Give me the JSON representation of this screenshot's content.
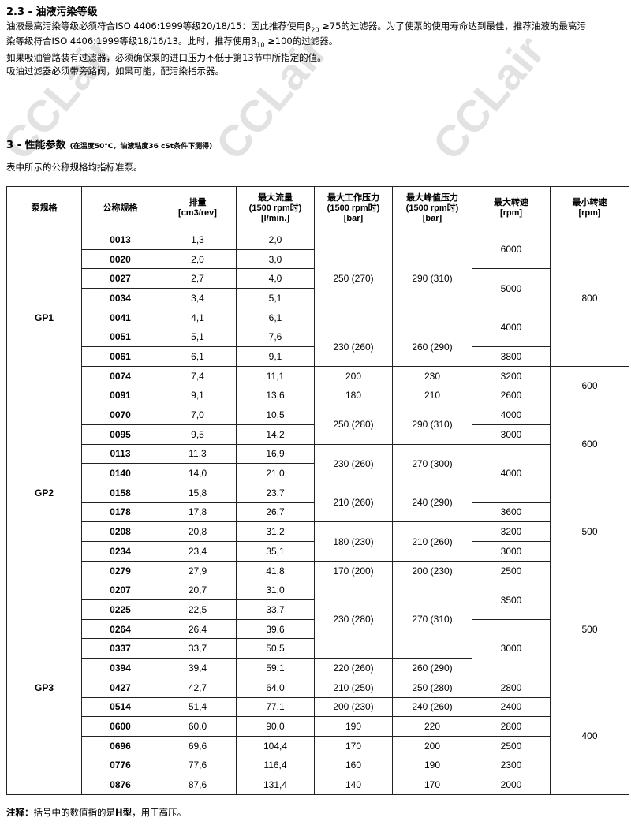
{
  "section_2_3": {
    "title": "2.3 - 油液污染等级",
    "line1_a": "油液最高污染等级必须符合ISO 4406:1999等级20/18/15：因此推荐使用β",
    "line1_sub": "20",
    "line1_b": " ≥75的过滤器。为了使泵的使用寿命达到最佳，推荐油液的最高污",
    "line2_a": "染等级符合ISO 4406:1999等级18/16/13。此时，推荐使用β",
    "line2_sub": "10",
    "line2_b": " ≥100的过滤器。",
    "line3": "如果吸油管路装有过滤器，必须确保泵的进口压力不低于第13节中所指定的值。",
    "line4": "吸油过滤器必须带旁路阀，如果可能，配污染指示器。"
  },
  "section_3": {
    "title": "3 - 性能参数",
    "condition": "(在温度50°C，油液粘度36 cSt条件下测得)",
    "intro": "表中所示的公称规格均指标准泵。"
  },
  "table": {
    "headers": [
      [
        "泵规格"
      ],
      [
        "公称规格"
      ],
      [
        "排量",
        "[cm3/rev]"
      ],
      [
        "最大流量",
        "(1500 rpm时)",
        "[l/min.]"
      ],
      [
        "最大工作压力",
        "(1500 rpm时)",
        "[bar]"
      ],
      [
        "最大峰值压力",
        "(1500 rpm时)",
        "[bar]"
      ],
      [
        "最大转速",
        "[rpm]"
      ],
      [
        "最小转速",
        "[rpm]"
      ]
    ],
    "groups": [
      {
        "name": "GP1",
        "nominal": [
          "0013",
          "0020",
          "0027",
          "0034",
          "0041",
          "0051",
          "0061",
          "0074",
          "0091"
        ],
        "displacement": [
          "1,3",
          "2,0",
          "2,7",
          "3,4",
          "4,1",
          "5,1",
          "6,1",
          "7,4",
          "9,1"
        ],
        "max_flow": [
          "2,0",
          "3,0",
          "4,0",
          "5,1",
          "6,1",
          "7,6",
          "9,1",
          "11,1",
          "13,6"
        ],
        "work_pressure": [
          {
            "v": "250 (270)",
            "span": 5
          },
          {
            "v": "230 (260)",
            "span": 2
          },
          {
            "v": "200",
            "span": 1
          },
          {
            "v": "180",
            "span": 1
          }
        ],
        "peak_pressure": [
          {
            "v": "290 (310)",
            "span": 5
          },
          {
            "v": "260 (290)",
            "span": 2
          },
          {
            "v": "230",
            "span": 1
          },
          {
            "v": "210",
            "span": 1
          }
        ],
        "max_speed": [
          {
            "v": "6000",
            "span": 2
          },
          {
            "v": "5000",
            "span": 2
          },
          {
            "v": "4000",
            "span": 2
          },
          {
            "v": "3800",
            "span": 1
          },
          {
            "v": "3200",
            "span": 1
          },
          {
            "v": "2600",
            "span": 1
          }
        ],
        "min_speed": [
          {
            "v": "800",
            "span": 7
          },
          {
            "v": "600",
            "span": 2
          }
        ]
      },
      {
        "name": "GP2",
        "nominal": [
          "0070",
          "0095",
          "0113",
          "0140",
          "0158",
          "0178",
          "0208",
          "0234",
          "0279"
        ],
        "displacement": [
          "7,0",
          "9,5",
          "11,3",
          "14,0",
          "15,8",
          "17,8",
          "20,8",
          "23,4",
          "27,9"
        ],
        "max_flow": [
          "10,5",
          "14,2",
          "16,9",
          "21,0",
          "23,7",
          "26,7",
          "31,2",
          "35,1",
          "41,8"
        ],
        "work_pressure": [
          {
            "v": "250 (280)",
            "span": 2
          },
          {
            "v": "230 (260)",
            "span": 2
          },
          {
            "v": "210 (260)",
            "span": 2
          },
          {
            "v": "180 (230)",
            "span": 2
          },
          {
            "v": "170 (200)",
            "span": 1
          }
        ],
        "peak_pressure": [
          {
            "v": "290 (310)",
            "span": 2
          },
          {
            "v": "270 (300)",
            "span": 2
          },
          {
            "v": "240 (290)",
            "span": 2
          },
          {
            "v": "210 (260)",
            "span": 2
          },
          {
            "v": "200 (230)",
            "span": 1
          }
        ],
        "max_speed": [
          {
            "v": "4000",
            "span": 1
          },
          {
            "v": "3000",
            "span": 1
          },
          {
            "v": "4000",
            "span": 3
          },
          {
            "v": "3600",
            "span": 1
          },
          {
            "v": "3200",
            "span": 1
          },
          {
            "v": "3000",
            "span": 1
          },
          {
            "v": "2500",
            "span": 1
          }
        ],
        "min_speed": [
          {
            "v": "600",
            "span": 4
          },
          {
            "v": "500",
            "span": 5
          }
        ]
      },
      {
        "name": "GP3",
        "nominal": [
          "0207",
          "0225",
          "0264",
          "0337",
          "0394",
          "0427",
          "0514",
          "0600",
          "0696",
          "0776",
          "0876"
        ],
        "displacement": [
          "20,7",
          "22,5",
          "26,4",
          "33,7",
          "39,4",
          "42,7",
          "51,4",
          "60,0",
          "69,6",
          "77,6",
          "87,6"
        ],
        "max_flow": [
          "31,0",
          "33,7",
          "39,6",
          "50,5",
          "59,1",
          "64,0",
          "77,1",
          "90,0",
          "104,4",
          "116,4",
          "131,4"
        ],
        "work_pressure": [
          {
            "v": "230 (280)",
            "span": 4
          },
          {
            "v": "220 (260)",
            "span": 1
          },
          {
            "v": "210 (250)",
            "span": 1
          },
          {
            "v": "200 (230)",
            "span": 1
          },
          {
            "v": "190",
            "span": 1
          },
          {
            "v": "170",
            "span": 1
          },
          {
            "v": "160",
            "span": 1
          },
          {
            "v": "140",
            "span": 1
          }
        ],
        "peak_pressure": [
          {
            "v": "270 (310)",
            "span": 4
          },
          {
            "v": "260 (290)",
            "span": 1
          },
          {
            "v": "250 (280)",
            "span": 1
          },
          {
            "v": "240 (260)",
            "span": 1
          },
          {
            "v": "220",
            "span": 1
          },
          {
            "v": "200",
            "span": 1
          },
          {
            "v": "190",
            "span": 1
          },
          {
            "v": "170",
            "span": 1
          }
        ],
        "max_speed": [
          {
            "v": "3500",
            "span": 2
          },
          {
            "v": "3000",
            "span": 3
          },
          {
            "v": "2800",
            "span": 1
          },
          {
            "v": "2400",
            "span": 1
          },
          {
            "v": "2800",
            "span": 1
          },
          {
            "v": "2500",
            "span": 1
          },
          {
            "v": "2300",
            "span": 1
          },
          {
            "v": "2000",
            "span": 1
          }
        ],
        "min_speed": [
          {
            "v": "500",
            "span": 5
          },
          {
            "v": "400",
            "span": 6
          }
        ]
      }
    ]
  },
  "footnote": {
    "label": "注释：",
    "text": "括号中的数值指的是",
    "bold": "H型",
    "tail": "，用于高压。"
  },
  "watermark": "CCLair"
}
